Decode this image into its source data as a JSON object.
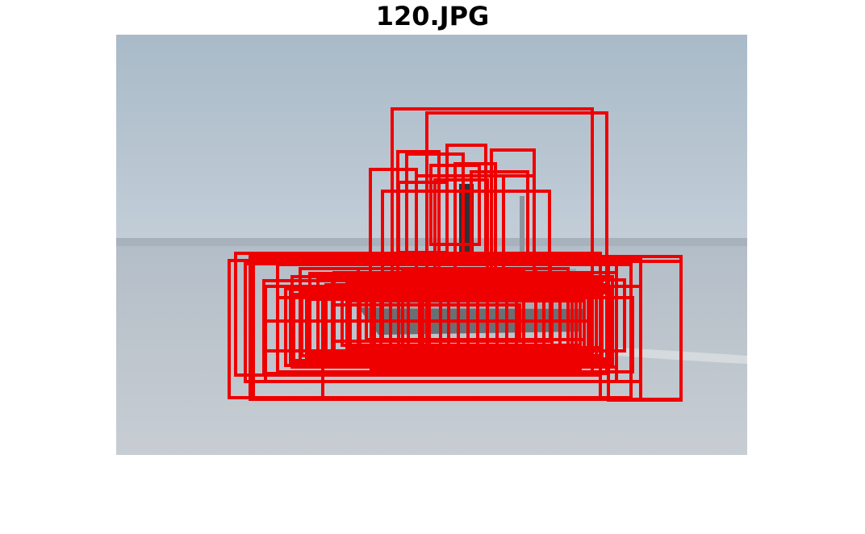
{
  "figure": {
    "title": "120.JPG",
    "box_color": "#ee0000",
    "box_count": 70,
    "colors": {
      "sky_top": "#a9bac8",
      "sky_mid": "#c3ced8",
      "horizon": "#a7b2bd",
      "water_top": "#b4bec8",
      "water_bottom": "#c7cdd3",
      "boat_hull": "#6b6f73",
      "boat_cabin": "#2e3236"
    }
  }
}
